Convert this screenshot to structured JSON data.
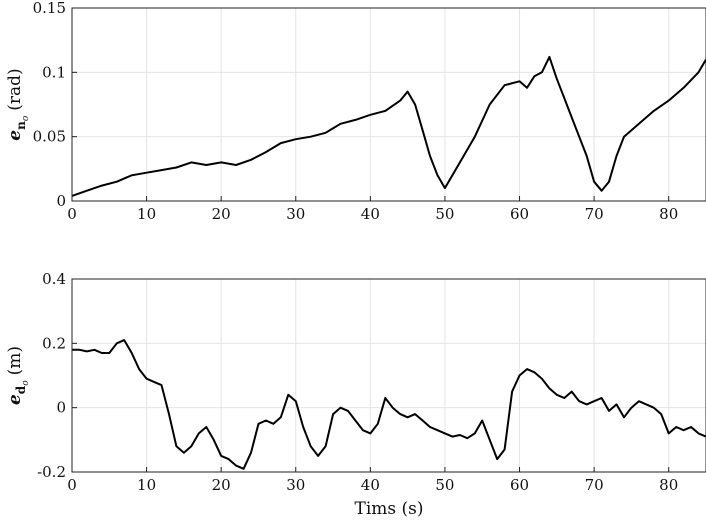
{
  "chart_data": [
    {
      "type": "line",
      "title": "",
      "xlabel": "",
      "ylabel_symbol": "e",
      "ylabel_sub": "n",
      "ylabel_subsub": "o",
      "ylabel_unit": "(rad)",
      "xlim": [
        0,
        85
      ],
      "ylim": [
        0,
        0.15
      ],
      "xticks": [
        0,
        10,
        20,
        30,
        40,
        50,
        60,
        70,
        80
      ],
      "xtick_labels": [
        "0",
        "10",
        "20",
        "30",
        "40",
        "50",
        "60",
        "70",
        "80"
      ],
      "yticks": [
        0,
        0.05,
        0.1,
        0.15
      ],
      "ytick_labels": [
        "0",
        "0.05",
        "0.1",
        "0.15"
      ],
      "grid": true,
      "series": [
        {
          "color": "#000000",
          "x": [
            0,
            2,
            4,
            6,
            8,
            10,
            12,
            14,
            16,
            18,
            20,
            22,
            24,
            26,
            28,
            30,
            32,
            34,
            36,
            38,
            40,
            42,
            44,
            45,
            46,
            47,
            48,
            49,
            50,
            52,
            54,
            56,
            58,
            60,
            61,
            62,
            63,
            64,
            65,
            66,
            67,
            68,
            69,
            70,
            71,
            72,
            73,
            74,
            76,
            78,
            80,
            82,
            84,
            85
          ],
          "y": [
            0.004,
            0.008,
            0.012,
            0.015,
            0.02,
            0.022,
            0.024,
            0.026,
            0.03,
            0.028,
            0.03,
            0.028,
            0.032,
            0.038,
            0.045,
            0.048,
            0.05,
            0.053,
            0.06,
            0.063,
            0.067,
            0.07,
            0.078,
            0.085,
            0.075,
            0.055,
            0.035,
            0.02,
            0.01,
            0.03,
            0.05,
            0.075,
            0.09,
            0.093,
            0.088,
            0.097,
            0.1,
            0.112,
            0.095,
            0.08,
            0.065,
            0.05,
            0.035,
            0.015,
            0.008,
            0.015,
            0.035,
            0.05,
            0.06,
            0.07,
            0.078,
            0.088,
            0.1,
            0.11
          ]
        }
      ]
    },
    {
      "type": "line",
      "title": "",
      "xlabel": "Tims (s)",
      "ylabel_symbol": "e",
      "ylabel_sub": "d",
      "ylabel_subsub": "o",
      "ylabel_unit": "(m)",
      "xlim": [
        0,
        85
      ],
      "ylim": [
        -0.2,
        0.4
      ],
      "xticks": [
        0,
        10,
        20,
        30,
        40,
        50,
        60,
        70,
        80
      ],
      "xtick_labels": [
        "0",
        "10",
        "20",
        "30",
        "40",
        "50",
        "60",
        "70",
        "80"
      ],
      "yticks": [
        -0.2,
        0,
        0.2,
        0.4
      ],
      "ytick_labels": [
        "-0.2",
        "0",
        "0.2",
        "0.4"
      ],
      "grid": true,
      "series": [
        {
          "color": "#000000",
          "x": [
            0,
            1,
            2,
            3,
            4,
            5,
            6,
            7,
            8,
            9,
            10,
            11,
            12,
            13,
            14,
            15,
            16,
            17,
            18,
            19,
            20,
            21,
            22,
            23,
            24,
            25,
            26,
            27,
            28,
            29,
            30,
            31,
            32,
            33,
            34,
            35,
            36,
            37,
            38,
            39,
            40,
            41,
            42,
            43,
            44,
            45,
            46,
            47,
            48,
            49,
            50,
            51,
            52,
            53,
            54,
            55,
            56,
            57,
            58,
            59,
            60,
            61,
            62,
            63,
            64,
            65,
            66,
            67,
            68,
            69,
            70,
            71,
            72,
            73,
            74,
            75,
            76,
            77,
            78,
            79,
            80,
            81,
            82,
            83,
            84,
            85
          ],
          "y": [
            0.18,
            0.18,
            0.175,
            0.18,
            0.17,
            0.17,
            0.2,
            0.21,
            0.17,
            0.12,
            0.09,
            0.08,
            0.07,
            -0.02,
            -0.12,
            -0.14,
            -0.12,
            -0.08,
            -0.06,
            -0.1,
            -0.15,
            -0.16,
            -0.18,
            -0.19,
            -0.14,
            -0.05,
            -0.04,
            -0.05,
            -0.03,
            0.04,
            0.02,
            -0.06,
            -0.12,
            -0.15,
            -0.12,
            -0.02,
            0.0,
            -0.01,
            -0.04,
            -0.07,
            -0.08,
            -0.05,
            0.03,
            0.0,
            -0.02,
            -0.03,
            -0.02,
            -0.04,
            -0.06,
            -0.07,
            -0.08,
            -0.09,
            -0.085,
            -0.095,
            -0.08,
            -0.04,
            -0.1,
            -0.16,
            -0.13,
            0.05,
            0.1,
            0.12,
            0.11,
            0.09,
            0.06,
            0.04,
            0.03,
            0.05,
            0.02,
            0.01,
            0.02,
            0.03,
            -0.01,
            0.01,
            -0.03,
            0.0,
            0.02,
            0.01,
            0.0,
            -0.02,
            -0.08,
            -0.06,
            -0.07,
            -0.06,
            -0.08,
            -0.09
          ]
        }
      ]
    }
  ]
}
